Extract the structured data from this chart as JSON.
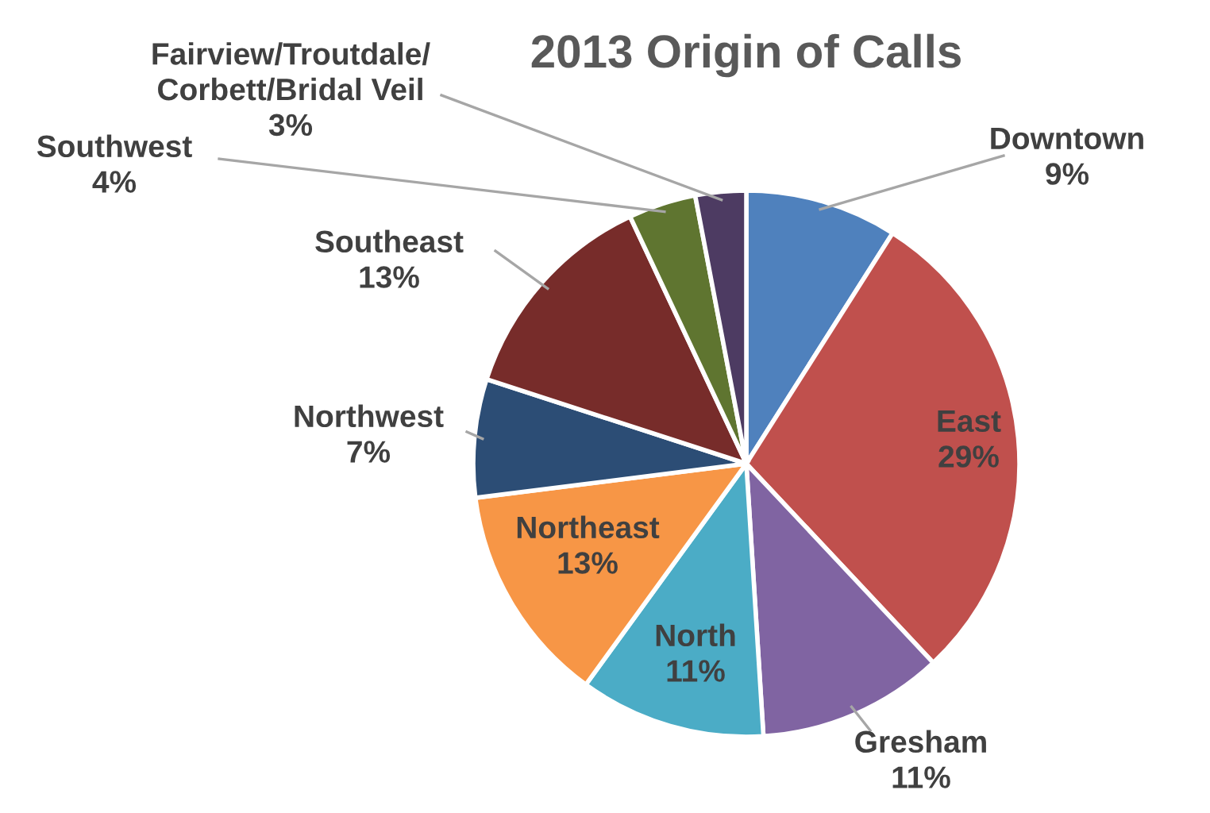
{
  "chart_data": {
    "type": "pie",
    "title": "2013 Origin of Calls",
    "categories": [
      "Downtown",
      "East",
      "Gresham",
      "North",
      "Northeast",
      "Northwest",
      "Southeast",
      "Southwest",
      "Fairview/Troutdale/\nCorbett/Bridal Veil"
    ],
    "values": [
      9,
      29,
      11,
      11,
      13,
      7,
      13,
      4,
      3
    ],
    "value_labels": [
      "9%",
      "29%",
      "11%",
      "11%",
      "13%",
      "7%",
      "13%",
      "4%",
      "3%"
    ],
    "colors": [
      "#4f81bd",
      "#c0504d",
      "#8064a2",
      "#4bacc6",
      "#f79646",
      "#2c4d75",
      "#772c2a",
      "#5f7530",
      "#4d3b62"
    ],
    "legend": false
  }
}
